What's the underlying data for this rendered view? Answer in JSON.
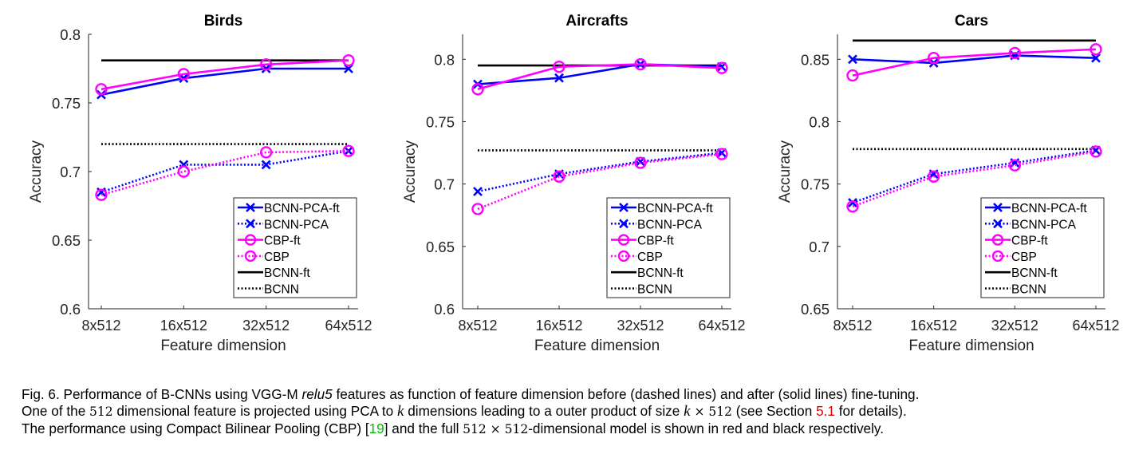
{
  "chart_data": [
    {
      "type": "line",
      "title": "Birds",
      "xlabel": "Feature dimension",
      "ylabel": "Accuracy",
      "categories": [
        "8x512",
        "16x512",
        "32x512",
        "64x512"
      ],
      "ylim": [
        0.6,
        0.8
      ],
      "yticks": [
        "0.6",
        "0.65",
        "0.7",
        "0.75",
        "0.8"
      ],
      "legend_position": "bottom-right",
      "series": [
        {
          "name": "BCNN-PCA-ft",
          "values": [
            0.756,
            0.768,
            0.775,
            0.775
          ],
          "color": "#0000ff",
          "style": "solid",
          "marker": "x"
        },
        {
          "name": "BCNN-PCA",
          "values": [
            0.685,
            0.705,
            0.705,
            0.715
          ],
          "color": "#0000ff",
          "style": "dotted",
          "marker": "x"
        },
        {
          "name": "CBP-ft",
          "values": [
            0.76,
            0.771,
            0.778,
            0.781
          ],
          "color": "#ff00ff",
          "style": "solid",
          "marker": "o"
        },
        {
          "name": "CBP",
          "values": [
            0.683,
            0.7,
            0.714,
            0.715
          ],
          "color": "#ff00ff",
          "style": "dotted",
          "marker": "o"
        },
        {
          "name": "BCNN-ft",
          "values": [
            0.781,
            0.781,
            0.781,
            0.781
          ],
          "color": "#000000",
          "style": "solid",
          "marker": "none"
        },
        {
          "name": "BCNN",
          "values": [
            0.72,
            0.72,
            0.72,
            0.72
          ],
          "color": "#000000",
          "style": "dotted",
          "marker": "none"
        }
      ]
    },
    {
      "type": "line",
      "title": "Aircrafts",
      "xlabel": "Feature dimension",
      "ylabel": "Accuracy",
      "categories": [
        "8x512",
        "16x512",
        "32x512",
        "64x512"
      ],
      "ylim": [
        0.6,
        0.82
      ],
      "yticks": [
        "0.6",
        "0.65",
        "0.7",
        "0.75",
        "0.8"
      ],
      "legend_position": "bottom-right",
      "series": [
        {
          "name": "BCNN-PCA-ft",
          "values": [
            0.78,
            0.785,
            0.796,
            0.794
          ],
          "color": "#0000ff",
          "style": "solid",
          "marker": "x"
        },
        {
          "name": "BCNN-PCA",
          "values": [
            0.694,
            0.708,
            0.718,
            0.725
          ],
          "color": "#0000ff",
          "style": "dotted",
          "marker": "x"
        },
        {
          "name": "CBP-ft",
          "values": [
            0.776,
            0.794,
            0.796,
            0.793
          ],
          "color": "#ff00ff",
          "style": "solid",
          "marker": "o"
        },
        {
          "name": "CBP",
          "values": [
            0.68,
            0.706,
            0.717,
            0.724
          ],
          "color": "#ff00ff",
          "style": "dotted",
          "marker": "o"
        },
        {
          "name": "BCNN-ft",
          "values": [
            0.795,
            0.795,
            0.795,
            0.795
          ],
          "color": "#000000",
          "style": "solid",
          "marker": "none"
        },
        {
          "name": "BCNN",
          "values": [
            0.727,
            0.727,
            0.727,
            0.727
          ],
          "color": "#000000",
          "style": "dotted",
          "marker": "none"
        }
      ]
    },
    {
      "type": "line",
      "title": "Cars",
      "xlabel": "Feature dimension",
      "ylabel": "Accuracy",
      "categories": [
        "8x512",
        "16x512",
        "32x512",
        "64x512"
      ],
      "ylim": [
        0.65,
        0.87
      ],
      "yticks": [
        "0.65",
        "0.7",
        "0.75",
        "0.8",
        "0.85"
      ],
      "legend_position": "bottom-right",
      "series": [
        {
          "name": "BCNN-PCA-ft",
          "values": [
            0.85,
            0.847,
            0.853,
            0.851
          ],
          "color": "#0000ff",
          "style": "solid",
          "marker": "x"
        },
        {
          "name": "BCNN-PCA",
          "values": [
            0.735,
            0.758,
            0.767,
            0.777
          ],
          "color": "#0000ff",
          "style": "dotted",
          "marker": "x"
        },
        {
          "name": "CBP-ft",
          "values": [
            0.837,
            0.851,
            0.855,
            0.858
          ],
          "color": "#ff00ff",
          "style": "solid",
          "marker": "o"
        },
        {
          "name": "CBP",
          "values": [
            0.732,
            0.756,
            0.765,
            0.776
          ],
          "color": "#ff00ff",
          "style": "dotted",
          "marker": "o"
        },
        {
          "name": "BCNN-ft",
          "values": [
            0.865,
            0.865,
            0.865,
            0.865
          ],
          "color": "#000000",
          "style": "solid",
          "marker": "none"
        },
        {
          "name": "BCNN",
          "values": [
            0.778,
            0.778,
            0.778,
            0.778
          ],
          "color": "#000000",
          "style": "dotted",
          "marker": "none"
        }
      ]
    }
  ],
  "caption": {
    "l1": "Fig. 6.  Performance of B-CNNs using VGG-M ",
    "l1_em": "relu5",
    "l1_b": " features as function of feature dimension before (dashed lines) and after (solid lines) fine-tuning.",
    "l2_a": "One of the ",
    "l2_m1": "512",
    "l2_b": " dimensional feature is projected using PCA to ",
    "l2_k": "k",
    "l2_c": " dimensions leading to a outer product of size ",
    "l2_m2a": "k",
    "l2_m2b": " × 512",
    "l2_d": " (see Section ",
    "l2_ref": "5.1",
    "l2_e": " for details).",
    "l3_a": "The performance using Compact Bilinear Pooling (CBP) [",
    "l3_ref": "19",
    "l3_b": "] and the full ",
    "l3_m": "512 × 512",
    "l3_c": "-dimensional model is shown in red and black respectively.",
    "ref_colors": {
      "section": "#e00000",
      "citation": "#00c000"
    }
  }
}
